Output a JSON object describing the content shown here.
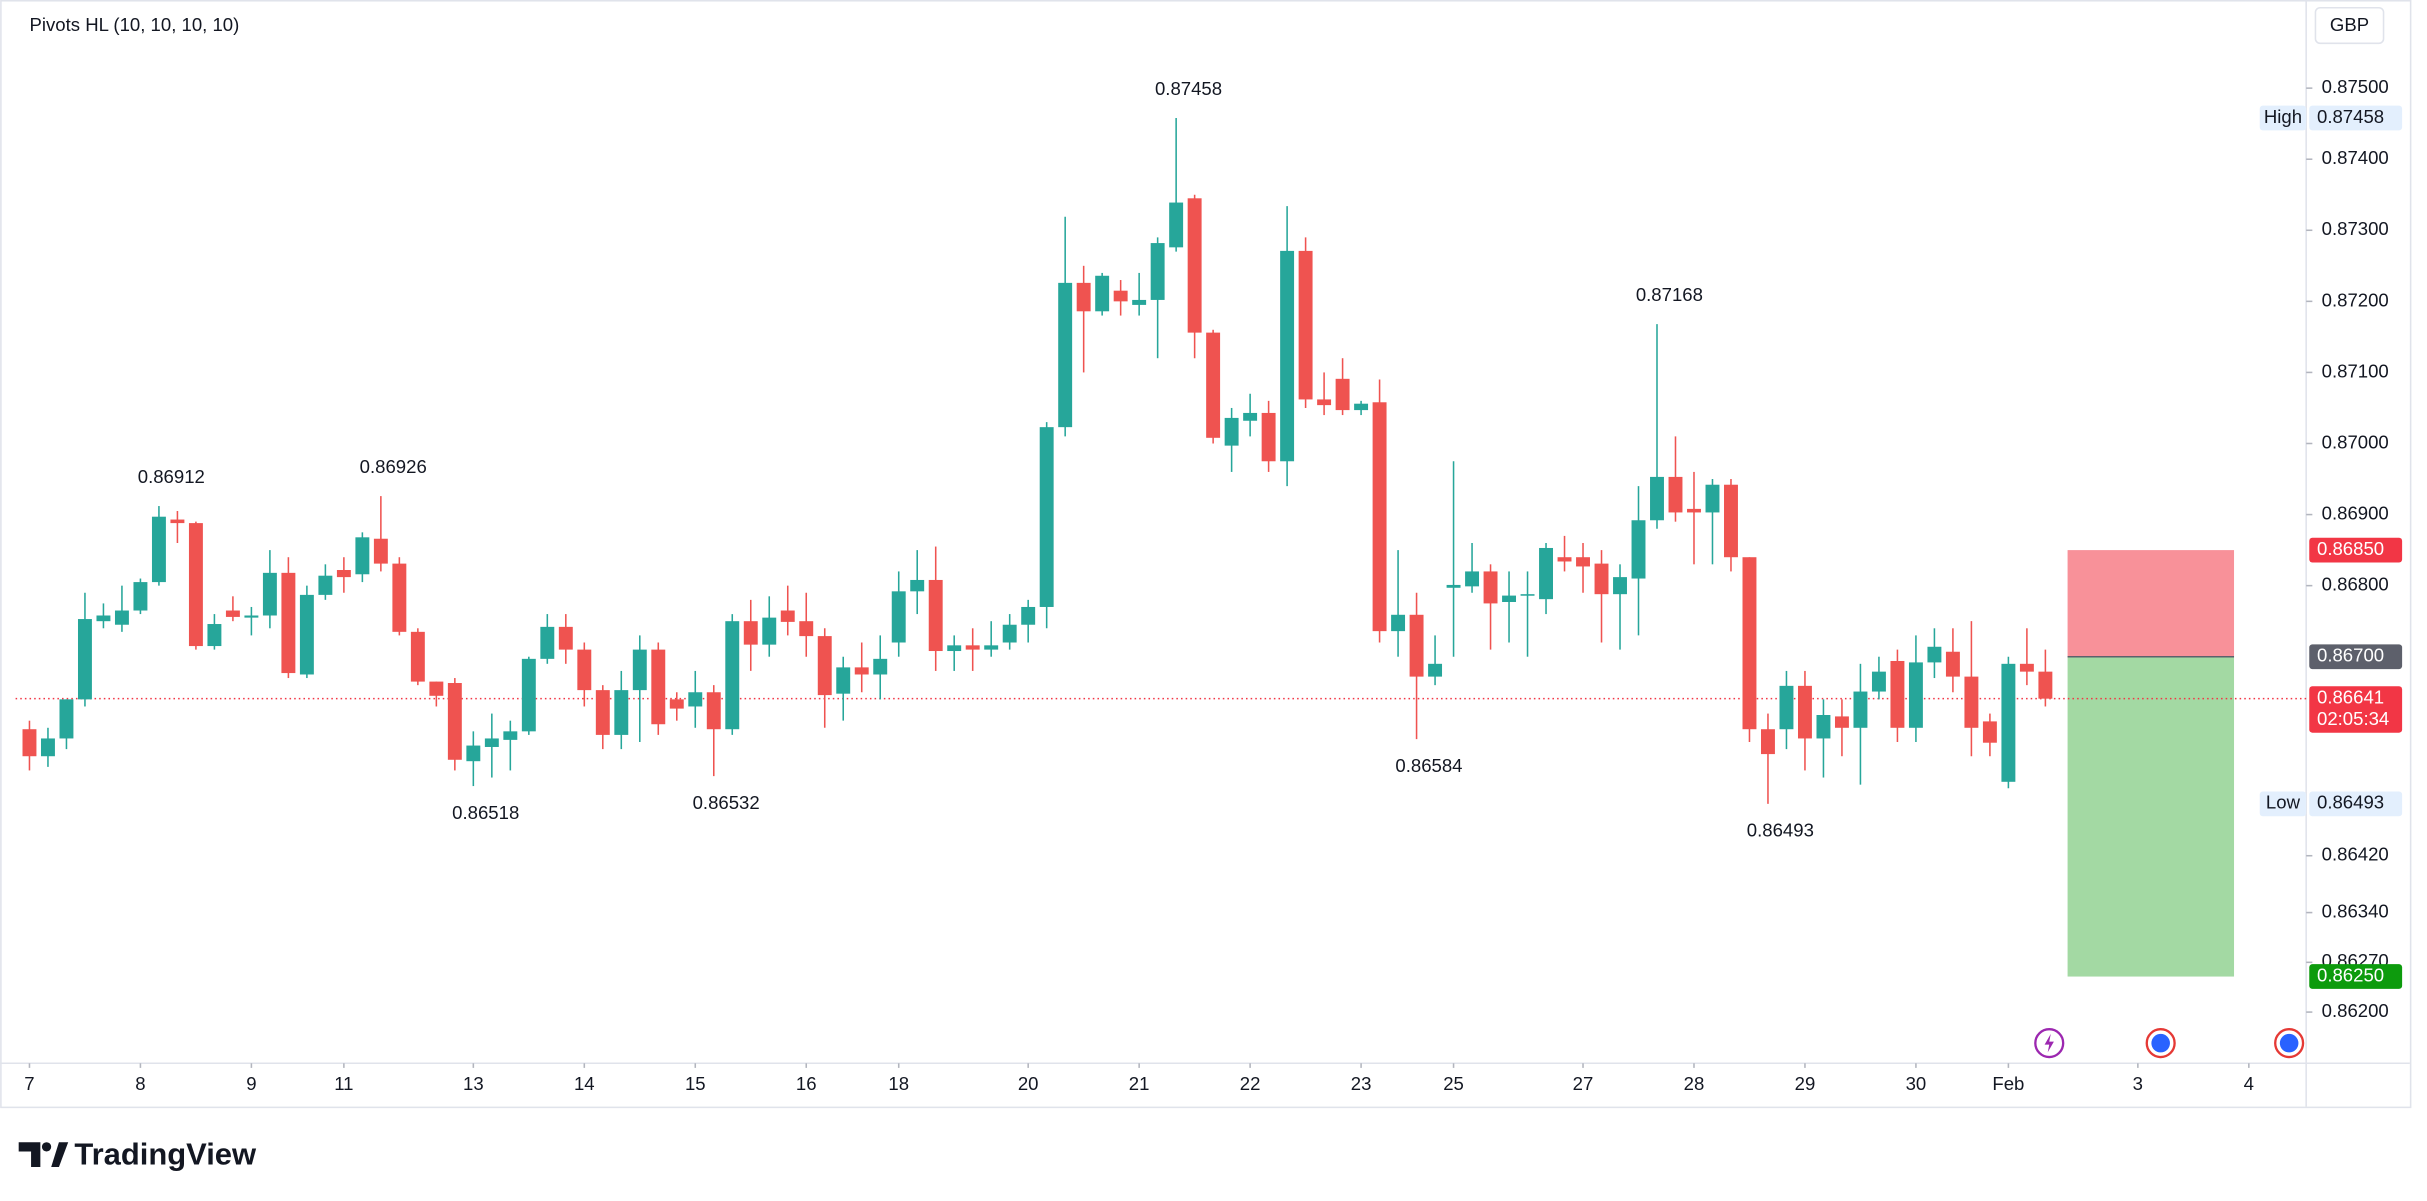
{
  "chart_data": {
    "type": "candlestick",
    "title": "Pivots HL (10, 10, 10, 10)",
    "currency": "GBP",
    "up_color": "#26a69a",
    "down_color": "#ef5350",
    "grid": false,
    "open": [
      0.86598,
      0.8656,
      0.86585,
      0.8664,
      0.8675,
      0.86745,
      0.86765,
      0.86805,
      0.86893,
      0.86888,
      0.86715,
      0.86765,
      0.86755,
      0.86758,
      0.86818,
      0.86675,
      0.86787,
      0.86822,
      0.86816,
      0.86866,
      0.86831,
      0.86735,
      0.86665,
      0.86663,
      0.86553,
      0.86573,
      0.86583,
      0.86595,
      0.86697,
      0.86742,
      0.8671,
      0.86653,
      0.8659,
      0.86653,
      0.8671,
      0.8664,
      0.8663,
      0.8665,
      0.86598,
      0.8675,
      0.86717,
      0.86765,
      0.8675,
      0.86729,
      0.86648,
      0.86685,
      0.86675,
      0.8672,
      0.86792,
      0.86808,
      0.86708,
      0.86716,
      0.8671,
      0.8672,
      0.86745,
      0.8677,
      0.87023,
      0.87226,
      0.87186,
      0.87215,
      0.87195,
      0.87202,
      0.87276,
      0.87345,
      0.87156,
      0.86997,
      0.87032,
      0.87043,
      0.86975,
      0.87271,
      0.87062,
      0.87091,
      0.87047,
      0.87058,
      0.86736,
      0.86759,
      0.86672,
      0.86797,
      0.86799,
      0.8682,
      0.86777,
      0.86786,
      0.86781,
      0.8684,
      0.8684,
      0.86831,
      0.86788,
      0.8681,
      0.86892,
      0.86953,
      0.86908,
      0.86903,
      0.86942,
      0.8684,
      0.86598,
      0.86598,
      0.86659,
      0.86585,
      0.86616,
      0.866,
      0.86651,
      0.86694,
      0.866,
      0.86692,
      0.86707,
      0.86672,
      0.86609,
      0.86524,
      0.8669,
      0.86679
    ],
    "high": [
      0.8661,
      0.866,
      0.8664,
      0.8679,
      0.86775,
      0.868,
      0.8681,
      0.86912,
      0.86905,
      0.8689,
      0.8676,
      0.86785,
      0.8677,
      0.8685,
      0.8684,
      0.868,
      0.8683,
      0.8684,
      0.86875,
      0.86926,
      0.8684,
      0.8674,
      0.86665,
      0.8667,
      0.86595,
      0.8662,
      0.8661,
      0.867,
      0.8676,
      0.8676,
      0.8672,
      0.8666,
      0.8668,
      0.8673,
      0.8672,
      0.8665,
      0.8668,
      0.8666,
      0.8676,
      0.8678,
      0.86785,
      0.868,
      0.8679,
      0.8674,
      0.867,
      0.8672,
      0.8673,
      0.8682,
      0.8685,
      0.86855,
      0.8673,
      0.8674,
      0.8675,
      0.8676,
      0.8678,
      0.8703,
      0.87319,
      0.8725,
      0.8724,
      0.8723,
      0.8724,
      0.8729,
      0.87458,
      0.8735,
      0.8716,
      0.8705,
      0.8707,
      0.8706,
      0.87334,
      0.8729,
      0.871,
      0.8712,
      0.8706,
      0.8709,
      0.8685,
      0.8679,
      0.8673,
      0.86975,
      0.8686,
      0.8683,
      0.8682,
      0.8682,
      0.8686,
      0.8687,
      0.8686,
      0.8685,
      0.8683,
      0.8694,
      0.87168,
      0.8701,
      0.8696,
      0.8695,
      0.8695,
      0.8684,
      0.8662,
      0.8668,
      0.8668,
      0.8664,
      0.8664,
      0.8669,
      0.867,
      0.8671,
      0.8673,
      0.8674,
      0.8674,
      0.8675,
      0.8662,
      0.867,
      0.8674,
      0.8671
    ],
    "low": [
      0.8654,
      0.86545,
      0.8657,
      0.8663,
      0.8674,
      0.86735,
      0.8676,
      0.868,
      0.8686,
      0.8671,
      0.8671,
      0.8675,
      0.8673,
      0.8674,
      0.8667,
      0.8667,
      0.8678,
      0.8679,
      0.86805,
      0.8682,
      0.8673,
      0.8666,
      0.8663,
      0.8654,
      0.86518,
      0.8653,
      0.8654,
      0.8659,
      0.8669,
      0.8669,
      0.8663,
      0.8657,
      0.8657,
      0.8658,
      0.8659,
      0.8661,
      0.866,
      0.86532,
      0.8659,
      0.8668,
      0.867,
      0.8673,
      0.867,
      0.866,
      0.8661,
      0.8665,
      0.8664,
      0.867,
      0.8676,
      0.8668,
      0.8668,
      0.8668,
      0.867,
      0.8671,
      0.8672,
      0.8674,
      0.8701,
      0.871,
      0.8718,
      0.8718,
      0.8718,
      0.8712,
      0.8727,
      0.8712,
      0.87,
      0.8696,
      0.8701,
      0.8696,
      0.8694,
      0.8705,
      0.8704,
      0.8704,
      0.8704,
      0.8672,
      0.867,
      0.86584,
      0.8666,
      0.867,
      0.8679,
      0.8671,
      0.8672,
      0.867,
      0.8676,
      0.8682,
      0.8679,
      0.8672,
      0.8671,
      0.8673,
      0.8688,
      0.8689,
      0.8683,
      0.8683,
      0.8682,
      0.8658,
      0.86493,
      0.8657,
      0.8654,
      0.8653,
      0.8656,
      0.8652,
      0.8664,
      0.8658,
      0.8658,
      0.8667,
      0.8665,
      0.8656,
      0.8656,
      0.86515,
      0.8666,
      0.8663
    ],
    "close": [
      0.8656,
      0.86585,
      0.8664,
      0.86753,
      0.86758,
      0.86765,
      0.86805,
      0.86897,
      0.86888,
      0.86715,
      0.86746,
      0.86756,
      0.86758,
      0.86818,
      0.86677,
      0.86787,
      0.86814,
      0.86812,
      0.86868,
      0.86831,
      0.86735,
      0.86665,
      0.86645,
      0.86555,
      0.86575,
      0.86585,
      0.86595,
      0.86697,
      0.86742,
      0.8671,
      0.86653,
      0.8659,
      0.86653,
      0.8671,
      0.86605,
      0.86627,
      0.8665,
      0.86598,
      0.8675,
      0.86717,
      0.86755,
      0.86749,
      0.86729,
      0.86646,
      0.86685,
      0.86675,
      0.86697,
      0.86792,
      0.86808,
      0.86708,
      0.86716,
      0.8671,
      0.86716,
      0.86745,
      0.8677,
      0.87023,
      0.87226,
      0.87186,
      0.87236,
      0.872,
      0.87202,
      0.87282,
      0.87339,
      0.87156,
      0.87008,
      0.87036,
      0.87043,
      0.86975,
      0.87271,
      0.87062,
      0.87054,
      0.87047,
      0.87056,
      0.86736,
      0.86759,
      0.86672,
      0.8669,
      0.86801,
      0.8682,
      0.86775,
      0.86786,
      0.86788,
      0.86853,
      0.86834,
      0.86827,
      0.86788,
      0.86812,
      0.86892,
      0.86953,
      0.86903,
      0.86903,
      0.86942,
      0.8684,
      0.86598,
      0.86563,
      0.86659,
      0.86585,
      0.86618,
      0.866,
      0.86651,
      0.86679,
      0.866,
      0.86692,
      0.86714,
      0.86672,
      0.866,
      0.86579,
      0.8669,
      0.86679,
      0.86641
    ],
    "xlim": [
      -0.75,
      123.1
    ],
    "xticks": [
      {
        "value": 0,
        "label": "7"
      },
      {
        "value": 6,
        "label": "8"
      },
      {
        "value": 12,
        "label": "9"
      },
      {
        "value": 17,
        "label": "11"
      },
      {
        "value": 24,
        "label": "13"
      },
      {
        "value": 30,
        "label": "14"
      },
      {
        "value": 36,
        "label": "15"
      },
      {
        "value": 42,
        "label": "16"
      },
      {
        "value": 47,
        "label": "18"
      },
      {
        "value": 54,
        "label": "20"
      },
      {
        "value": 60,
        "label": "21"
      },
      {
        "value": 66,
        "label": "22"
      },
      {
        "value": 72,
        "label": "23"
      },
      {
        "value": 77,
        "label": "25"
      },
      {
        "value": 84,
        "label": "27"
      },
      {
        "value": 90,
        "label": "28"
      },
      {
        "value": 96,
        "label": "29"
      },
      {
        "value": 102,
        "label": "30"
      },
      {
        "value": 107,
        "label": "Feb"
      },
      {
        "value": 114,
        "label": "3"
      },
      {
        "value": 120,
        "label": "4"
      }
    ],
    "ylim": [
      0.86128,
      0.87624
    ],
    "yticks": [
      {
        "value": 0.875,
        "label": "0.87500"
      },
      {
        "value": 0.874,
        "label": "0.87400"
      },
      {
        "value": 0.873,
        "label": "0.87300"
      },
      {
        "value": 0.872,
        "label": "0.87200"
      },
      {
        "value": 0.871,
        "label": "0.87100"
      },
      {
        "value": 0.87,
        "label": "0.87000"
      },
      {
        "value": 0.869,
        "label": "0.86900"
      },
      {
        "value": 0.868,
        "label": "0.86800"
      },
      {
        "value": 0.8642,
        "label": "0.86420"
      },
      {
        "value": 0.8634,
        "label": "0.86340"
      },
      {
        "value": 0.8627,
        "label": "0.86270"
      },
      {
        "value": 0.862,
        "label": "0.86200"
      }
    ],
    "pivots": [
      {
        "candle": 7,
        "kind": "high",
        "value": 0.86912
      },
      {
        "candle": 19,
        "kind": "high",
        "value": 0.86926
      },
      {
        "candle": 24,
        "kind": "low",
        "value": 0.86518
      },
      {
        "candle": 37,
        "kind": "low",
        "value": 0.86532
      },
      {
        "candle": 62,
        "kind": "high",
        "value": 0.87458
      },
      {
        "candle": 75,
        "kind": "low",
        "value": 0.86584
      },
      {
        "candle": 88,
        "kind": "high",
        "value": 0.87168
      },
      {
        "candle": 94,
        "kind": "low",
        "value": 0.86493
      }
    ],
    "high_badge": {
      "label": "High",
      "value": 0.87458
    },
    "low_badge": {
      "label": "Low",
      "value": 0.86493
    },
    "position": {
      "stop": {
        "value": 0.8685,
        "label": "0.86850"
      },
      "entry": {
        "value": 0.867,
        "label": "0.86700"
      },
      "target": {
        "value": 0.8625,
        "label": "0.86250"
      },
      "stop_color": "#f23645",
      "entry_color": "#5d606b",
      "target_color": "#0d9b0d"
    },
    "last_price": {
      "value": 0.86641,
      "label": "0.86641",
      "countdown": "02:05:34",
      "color": "#f23645"
    }
  },
  "brand": "TradingView"
}
